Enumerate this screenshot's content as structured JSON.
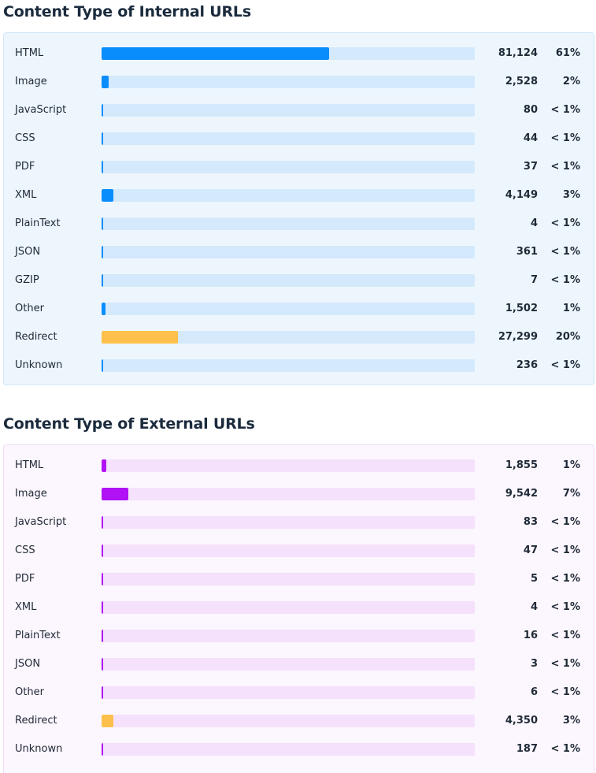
{
  "colors": {
    "internal_bar": "#0a8dfc",
    "external_bar": "#b012f5",
    "redirect_bar": "#ffc04b"
  },
  "internal": {
    "title": "Content Type of Internal URLs",
    "rows": [
      {
        "label": "HTML",
        "count": "81,124",
        "pct": "61%",
        "share": 0.61,
        "redirect": false
      },
      {
        "label": "Image",
        "count": "2,528",
        "pct": "2%",
        "share": 0.019,
        "redirect": false
      },
      {
        "label": "JavaScript",
        "count": "80",
        "pct": "< 1%",
        "share": 0.0006,
        "redirect": false
      },
      {
        "label": "CSS",
        "count": "44",
        "pct": "< 1%",
        "share": 0.0003,
        "redirect": false
      },
      {
        "label": "PDF",
        "count": "37",
        "pct": "< 1%",
        "share": 0.0003,
        "redirect": false
      },
      {
        "label": "XML",
        "count": "4,149",
        "pct": "3%",
        "share": 0.031,
        "redirect": false
      },
      {
        "label": "PlainText",
        "count": "4",
        "pct": "< 1%",
        "share": 3e-05,
        "redirect": false
      },
      {
        "label": "JSON",
        "count": "361",
        "pct": "< 1%",
        "share": 0.0027,
        "redirect": false
      },
      {
        "label": "GZIP",
        "count": "7",
        "pct": "< 1%",
        "share": 5e-05,
        "redirect": false
      },
      {
        "label": "Other",
        "count": "1,502",
        "pct": "1%",
        "share": 0.011,
        "redirect": false
      },
      {
        "label": "Redirect",
        "count": "27,299",
        "pct": "20%",
        "share": 0.205,
        "redirect": true
      },
      {
        "label": "Unknown",
        "count": "236",
        "pct": "< 1%",
        "share": 0.0018,
        "redirect": false
      }
    ]
  },
  "external": {
    "title": "Content Type of External URLs",
    "rows": [
      {
        "label": "HTML",
        "count": "1,855",
        "pct": "1%",
        "share": 0.013,
        "redirect": false
      },
      {
        "label": "Image",
        "count": "9,542",
        "pct": "7%",
        "share": 0.071,
        "redirect": false
      },
      {
        "label": "JavaScript",
        "count": "83",
        "pct": "< 1%",
        "share": 0.0006,
        "redirect": false
      },
      {
        "label": "CSS",
        "count": "47",
        "pct": "< 1%",
        "share": 0.0003,
        "redirect": false
      },
      {
        "label": "PDF",
        "count": "5",
        "pct": "< 1%",
        "share": 4e-05,
        "redirect": false
      },
      {
        "label": "XML",
        "count": "4",
        "pct": "< 1%",
        "share": 3e-05,
        "redirect": false
      },
      {
        "label": "PlainText",
        "count": "16",
        "pct": "< 1%",
        "share": 0.0001,
        "redirect": false
      },
      {
        "label": "JSON",
        "count": "3",
        "pct": "< 1%",
        "share": 2e-05,
        "redirect": false
      },
      {
        "label": "Other",
        "count": "6",
        "pct": "< 1%",
        "share": 4e-05,
        "redirect": false
      },
      {
        "label": "Redirect",
        "count": "4,350",
        "pct": "3%",
        "share": 0.032,
        "redirect": true
      },
      {
        "label": "Unknown",
        "count": "187",
        "pct": "< 1%",
        "share": 0.0014,
        "redirect": false
      }
    ]
  }
}
